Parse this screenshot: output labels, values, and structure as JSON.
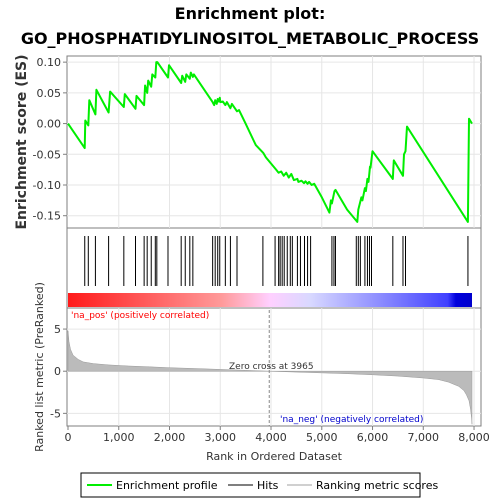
{
  "title_line1": "Enrichment plot:",
  "title_line2": "GO_PHOSPHATIDYLINOSITOL_METABOLIC_PROCESS",
  "colors": {
    "es_line": "#00ee00",
    "hit": "#000000",
    "metric_fill": "#bbbbbb",
    "pos_label": "#ff0000",
    "neg_label": "#0000cc",
    "zero_line": "#888888"
  },
  "annotations": {
    "pos_label": "'na_pos' (positively correlated)",
    "neg_label": "'na_neg' (negatively correlated)",
    "zero_cross": "Zero cross at 3965"
  },
  "legend": [
    {
      "label": "Enrichment profile",
      "kind": "es"
    },
    {
      "label": "Hits",
      "kind": "hit"
    },
    {
      "label": "Ranking metric scores",
      "kind": "metric"
    }
  ],
  "chart_data": [
    {
      "type": "line",
      "panel": "enrichment",
      "ylabel": "Enrichment score (ES)",
      "xlim": [
        0,
        8000
      ],
      "ylim": [
        -0.17,
        0.11
      ],
      "yticks": [
        "0.10",
        "0.05",
        "0.00",
        "-0.05",
        "-0.10",
        "-0.15"
      ],
      "yticks_values": [
        0.1,
        0.05,
        0.0,
        -0.05,
        -0.1,
        -0.15
      ],
      "grid": true,
      "series": [
        {
          "x": [
            0,
            330,
            340,
            400,
            420,
            540,
            560,
            800,
            830,
            1100,
            1120,
            1330,
            1350,
            1500,
            1520,
            1560,
            1580,
            1640,
            1660,
            1720,
            1740,
            1750,
            1760,
            1970,
            1990,
            2230,
            2250,
            2310,
            2330,
            2400,
            2420,
            2460,
            2480,
            2850,
            2880,
            2900,
            2930,
            2950,
            2970,
            2990,
            3000,
            3050,
            3100,
            3130,
            3200,
            3230,
            3330,
            3370,
            3500,
            3700,
            3850,
            3900,
            4000,
            4050,
            4100,
            4150,
            4200,
            4250,
            4300,
            4350,
            4400,
            4450,
            4520,
            4540,
            4600,
            4650,
            4680,
            4720,
            4750,
            4800,
            4850,
            5000,
            5150,
            5180,
            5200,
            5250,
            5270,
            5500,
            5700,
            5720,
            5780,
            5800,
            5850,
            5870,
            5900,
            5920,
            5950,
            5960,
            6000,
            6400,
            6420,
            6600,
            6620,
            6650,
            6680,
            7880,
            7900,
            7960
          ],
          "y": [
            0.0,
            -0.04,
            0.005,
            -0.003,
            0.038,
            0.015,
            0.055,
            0.018,
            0.052,
            0.027,
            0.048,
            0.024,
            0.045,
            0.03,
            0.062,
            0.05,
            0.07,
            0.06,
            0.08,
            0.075,
            0.1,
            0.1,
            0.1,
            0.075,
            0.095,
            0.066,
            0.078,
            0.068,
            0.08,
            0.073,
            0.083,
            0.076,
            0.08,
            0.035,
            0.03,
            0.038,
            0.032,
            0.04,
            0.036,
            0.042,
            0.035,
            0.036,
            0.03,
            0.035,
            0.025,
            0.032,
            0.02,
            0.022,
            0.0,
            -0.035,
            -0.048,
            -0.055,
            -0.065,
            -0.07,
            -0.075,
            -0.08,
            -0.078,
            -0.085,
            -0.08,
            -0.088,
            -0.082,
            -0.092,
            -0.09,
            -0.095,
            -0.093,
            -0.097,
            -0.094,
            -0.098,
            -0.095,
            -0.1,
            -0.098,
            -0.12,
            -0.145,
            -0.125,
            -0.13,
            -0.11,
            -0.108,
            -0.14,
            -0.16,
            -0.14,
            -0.12,
            -0.125,
            -0.105,
            -0.11,
            -0.09,
            -0.095,
            -0.07,
            -0.072,
            -0.045,
            -0.09,
            -0.06,
            -0.085,
            -0.05,
            -0.045,
            -0.005,
            -0.16,
            0.008,
            0.0
          ]
        }
      ]
    },
    {
      "type": "scatter",
      "panel": "hits",
      "x": [
        330,
        400,
        540,
        800,
        1100,
        1330,
        1500,
        1560,
        1640,
        1720,
        1750,
        1970,
        2230,
        2310,
        2400,
        2460,
        2850,
        2900,
        2950,
        2990,
        3100,
        3200,
        3330,
        3840,
        4080,
        4150,
        4180,
        4220,
        4260,
        4320,
        4380,
        4420,
        4520,
        4580,
        4660,
        4720,
        4780,
        5200,
        5240,
        5270,
        5680,
        5720,
        5760,
        5850,
        5900,
        5940,
        5980,
        6400,
        6600,
        6650,
        7880
      ]
    },
    {
      "type": "area",
      "panel": "ranking",
      "xlabel": "Rank in Ordered Dataset",
      "ylabel": "Ranked list metric (PreRanked)",
      "xlim": [
        0,
        8000
      ],
      "ylim": [
        -6.5,
        7.5
      ],
      "xticks": [
        "0",
        "1,000",
        "2,000",
        "3,000",
        "4,000",
        "5,000",
        "6,000",
        "7,000",
        "8,000"
      ],
      "xticks_values": [
        0,
        1000,
        2000,
        3000,
        4000,
        5000,
        6000,
        7000,
        8000
      ],
      "yticks": [
        "5",
        "0",
        "-5"
      ],
      "yticks_values": [
        5,
        0,
        -5
      ],
      "x": [
        0,
        20,
        50,
        100,
        200,
        300,
        500,
        800,
        1200,
        1600,
        2000,
        2500,
        3000,
        3500,
        3965,
        4500,
        5000,
        5500,
        6000,
        6500,
        7000,
        7300,
        7500,
        7700,
        7800,
        7850,
        7900,
        7930,
        7950,
        7960
      ],
      "y": [
        4.8,
        3.5,
        2.6,
        1.9,
        1.4,
        1.1,
        0.9,
        0.75,
        0.62,
        0.52,
        0.42,
        0.32,
        0.22,
        0.11,
        0.0,
        -0.1,
        -0.2,
        -0.3,
        -0.42,
        -0.58,
        -0.8,
        -1.0,
        -1.3,
        -1.8,
        -2.3,
        -2.8,
        -3.5,
        -4.5,
        -5.5,
        -6.3
      ]
    }
  ]
}
